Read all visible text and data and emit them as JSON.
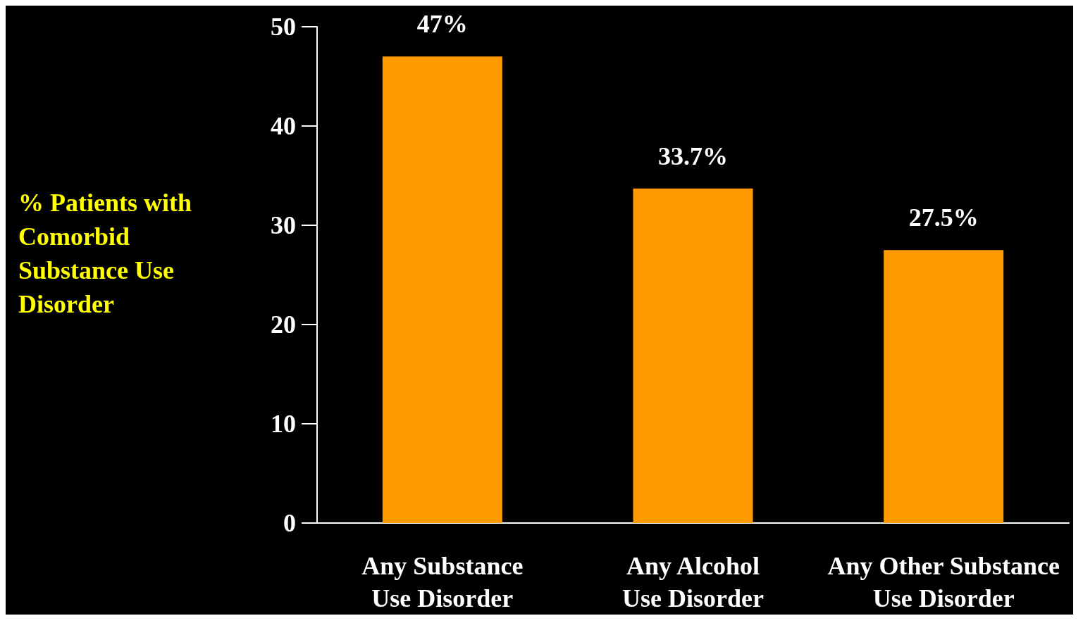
{
  "chart_data": {
    "type": "bar",
    "ylabel": "% Patients with Comorbid Substance Use Disorder",
    "categories": [
      "Any Substance Use Disorder",
      "Any Alcohol Use Disorder",
      "Any Other Substance Use Disorder"
    ],
    "values": [
      47,
      33.7,
      27.5
    ],
    "value_labels": [
      "47%",
      "33.7%",
      "27.5%"
    ],
    "color": "#ff9900",
    "ylim": [
      0,
      50
    ],
    "yticks": [
      0,
      10,
      20,
      30,
      40,
      50
    ],
    "grid": false
  }
}
